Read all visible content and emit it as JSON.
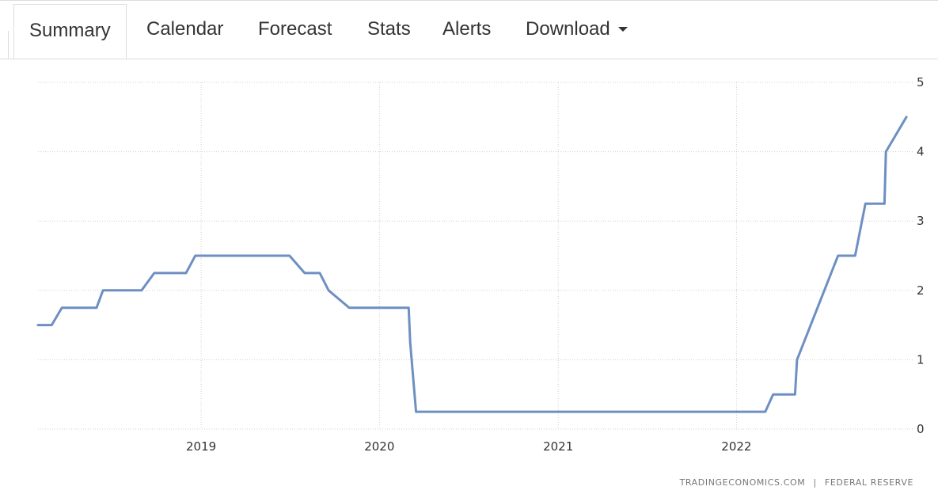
{
  "tabs": [
    {
      "label": "Summary",
      "active": true
    },
    {
      "label": "Calendar",
      "active": false
    },
    {
      "label": "Forecast",
      "active": false
    },
    {
      "label": "Stats",
      "active": false
    },
    {
      "label": "Alerts",
      "active": false
    },
    {
      "label": "Download",
      "active": false,
      "dropdown": true
    }
  ],
  "credits": {
    "source_site": "TRADINGECONOMICS.COM",
    "separator": "|",
    "source_org": "FEDERAL RESERVE"
  },
  "chart_data": {
    "type": "line",
    "title": "",
    "xlabel": "",
    "ylabel": "",
    "x_tick_labels": [
      "2019",
      "2020",
      "2021",
      "2022"
    ],
    "y_tick_labels": [
      "0",
      "1",
      "2",
      "3",
      "4",
      "5"
    ],
    "xlim": [
      "2018-02-01",
      "2022-12-31"
    ],
    "ylim": [
      0,
      5
    ],
    "grid": true,
    "line_color": "#6d8fc2",
    "series": [
      {
        "points": [
          [
            "2018-02-01",
            1.5
          ],
          [
            "2018-03-01",
            1.5
          ],
          [
            "2018-03-22",
            1.75
          ],
          [
            "2018-06-01",
            1.75
          ],
          [
            "2018-06-14",
            2.0
          ],
          [
            "2018-09-01",
            2.0
          ],
          [
            "2018-09-27",
            2.25
          ],
          [
            "2018-12-01",
            2.25
          ],
          [
            "2018-12-20",
            2.5
          ],
          [
            "2019-07-01",
            2.5
          ],
          [
            "2019-08-01",
            2.25
          ],
          [
            "2019-09-01",
            2.25
          ],
          [
            "2019-09-19",
            2.0
          ],
          [
            "2019-10-31",
            1.75
          ],
          [
            "2020-03-01",
            1.75
          ],
          [
            "2020-03-04",
            1.25
          ],
          [
            "2020-03-16",
            0.25
          ],
          [
            "2022-03-01",
            0.25
          ],
          [
            "2022-03-17",
            0.5
          ],
          [
            "2022-05-01",
            0.5
          ],
          [
            "2022-05-05",
            1.0
          ],
          [
            "2022-06-16",
            1.75
          ],
          [
            "2022-07-28",
            2.5
          ],
          [
            "2022-09-01",
            2.5
          ],
          [
            "2022-09-22",
            3.25
          ],
          [
            "2022-10-31",
            3.25
          ],
          [
            "2022-11-03",
            4.0
          ],
          [
            "2022-12-15",
            4.5
          ]
        ]
      }
    ]
  }
}
